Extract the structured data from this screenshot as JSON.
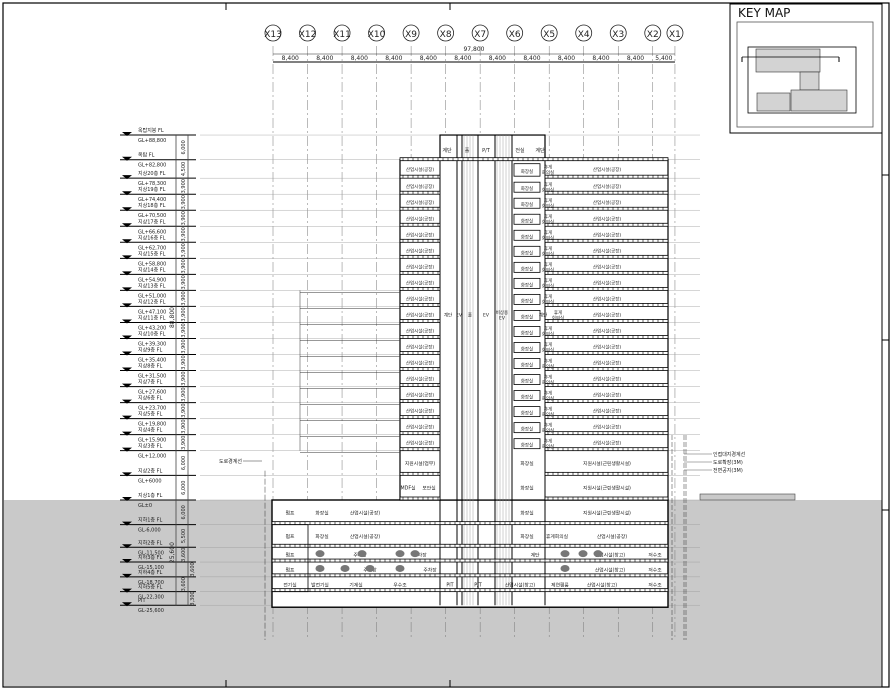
{
  "key_map": {
    "title": "KEY MAP"
  },
  "grid": {
    "labels": [
      "X13",
      "X12",
      "X11",
      "X10",
      "X9",
      "X8",
      "X7",
      "X6",
      "X5",
      "X4",
      "X3",
      "X2",
      "X1"
    ],
    "spans": [
      "8,400",
      "8,400",
      "8,400",
      "8,400",
      "8,400",
      "8,400",
      "8,400",
      "8,400",
      "8,400",
      "8,400",
      "8,400",
      "5,400"
    ],
    "total": "97,800"
  },
  "levels": [
    {
      "name": "옥탑지붕 FL",
      "gl": "GL+88,800"
    },
    {
      "name": "옥탑 FL",
      "gl": "GL+82,800"
    },
    {
      "name": "지상20층 FL",
      "gl": "GL+78,300"
    },
    {
      "name": "지상19층 FL",
      "gl": "GL+74,400"
    },
    {
      "name": "지상18층 FL",
      "gl": "GL+70,500"
    },
    {
      "name": "지상17층 FL",
      "gl": "GL+66,600"
    },
    {
      "name": "지상16층 FL",
      "gl": "GL+62,700"
    },
    {
      "name": "지상15층 FL",
      "gl": "GL+58,800"
    },
    {
      "name": "지상14층 FL",
      "gl": "GL+54,900"
    },
    {
      "name": "지상13층 FL",
      "gl": "GL+51,000"
    },
    {
      "name": "지상12층 FL",
      "gl": "GL+47,100"
    },
    {
      "name": "지상11층 FL",
      "gl": "GL+43,200"
    },
    {
      "name": "지상10층 FL",
      "gl": "GL+39,300"
    },
    {
      "name": "지상9층 FL",
      "gl": "GL+35,400"
    },
    {
      "name": "지상8층 FL",
      "gl": "GL+31,500"
    },
    {
      "name": "지상7층 FL",
      "gl": "GL+27,600"
    },
    {
      "name": "지상6층 FL",
      "gl": "GL+23,700"
    },
    {
      "name": "지상5층 FL",
      "gl": "GL+19,800"
    },
    {
      "name": "지상4층 FL",
      "gl": "GL+15,900"
    },
    {
      "name": "지상3층 FL",
      "gl": "GL+12,000"
    },
    {
      "name": "지상2층 FL",
      "gl": "GL+6000"
    },
    {
      "name": "지상1층 FL",
      "gl": "GL±0"
    },
    {
      "name": "지하1층 FL",
      "gl": "GL-6,000"
    },
    {
      "name": "지하2층 FL",
      "gl": "GL-11,500"
    },
    {
      "name": "지하3층 FL",
      "gl": "GL-15,100"
    },
    {
      "name": "지하4층 FL",
      "gl": "GL-18,700"
    },
    {
      "name": "지하5층 FL",
      "gl": "GL-22,300"
    },
    {
      "name": "PIT",
      "gl": "GL-25,600"
    }
  ],
  "level_dims": [
    "6,000",
    "4,500",
    "3,900",
    "3,900",
    "3,900",
    "3,900",
    "3,900",
    "3,900",
    "3,900",
    "3,900",
    "3,900",
    "3,900",
    "3,900",
    "3,900",
    "3,900",
    "3,900",
    "3,900",
    "3,900",
    "3,900",
    "6,000",
    "6,000",
    "6,000",
    "5,500",
    "3,600",
    "3,600",
    "3,600",
    "3,300"
  ],
  "total_dims": {
    "above": "88,800",
    "below": "25,600"
  },
  "penthouse_rooms": [
    "계단",
    "홀",
    "P/T",
    "전실",
    "계단"
  ],
  "typical_floor_rooms": {
    "left": "산업시설(공장)",
    "toilet": "화장실",
    "lounge": "휴게\n회의실",
    "right": "산업시설(공장)"
  },
  "core_labels": {
    "stair": "계단",
    "ev": "EV",
    "hall": "홀",
    "ev2": "EV",
    "freight": "비상용\nEV",
    "stair2": "계단"
  },
  "lower_rooms": {
    "f2": [
      "지원시설(업무)",
      "화장실",
      "지원시설(근린생활시설)"
    ],
    "f1": [
      "MDF실",
      "보안실",
      "화장실",
      "지원시설(근린생활시설)"
    ],
    "b1": [
      "펌프",
      "화장실",
      "산업시설(공장)",
      "화장실",
      "지원시설(근린생활시설)"
    ],
    "b2": [
      "펌프",
      "화장실",
      "산업시설(공장)",
      "화장실",
      "휴게회의실",
      "산업시설(공장)"
    ],
    "b3": [
      "펌프",
      "주차장",
      "주차장",
      "계단",
      "산업시설(창고)",
      "저수조"
    ],
    "b4": [
      "펌프",
      "주차장",
      "주차장",
      "산업시설(창고)",
      "저수조"
    ],
    "b5": [
      "전기실",
      "발전기실",
      "기계실",
      "우수조",
      "PIT",
      "P/T",
      "산업시설(창고)",
      "제연휀룸",
      "산업시설(창고)",
      "저수조"
    ]
  },
  "annotations": {
    "road_line": "도로경계선",
    "adjacent_line": "인접대지경계선",
    "road_widen": "도로확장(3M)",
    "front_space": "전면공지(3M)"
  }
}
